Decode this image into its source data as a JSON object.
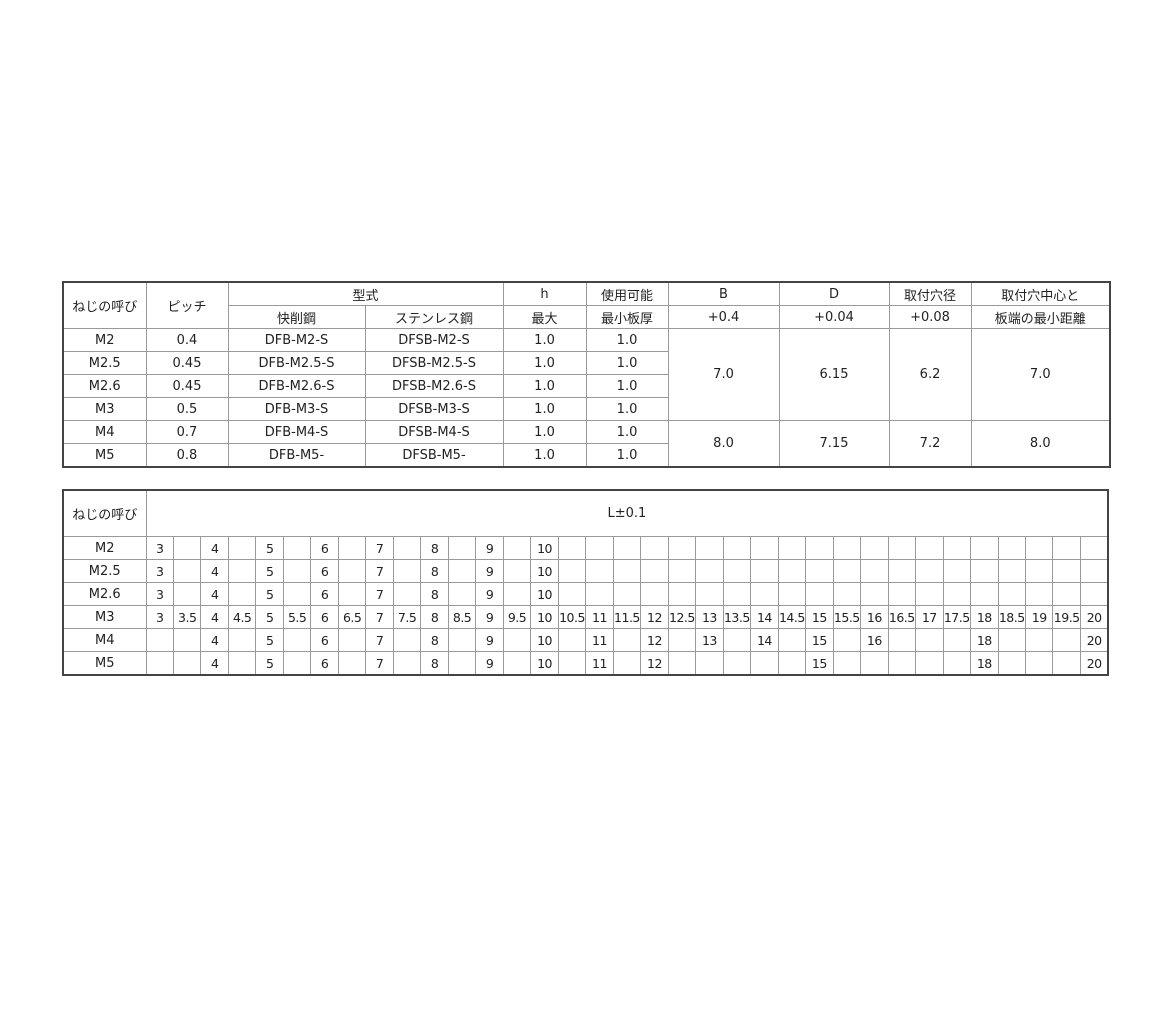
{
  "spec_table": {
    "headers": {
      "size": "ねじの呼び",
      "pitch": "ピッチ",
      "model": "型式",
      "model_free": "快削鋼",
      "model_sus": "ステンレス鋼",
      "h": "h",
      "h_sub": "最大",
      "thick": "使用可能",
      "thick_sub": "最小板厚",
      "b": "B",
      "b_tol": "+0.4",
      "d": "D",
      "d_tol": "+0.04",
      "hole": "取付穴径",
      "hole_tol": "+0.08",
      "edge": "取付穴中心と",
      "edge_sub": "板端の最小距離"
    },
    "rows": [
      {
        "size": "M2",
        "pitch": "0.4",
        "free": "DFB-M2-S",
        "sus": "DFSB-M2-S",
        "h": "1.0",
        "thick": "1.0"
      },
      {
        "size": "M2.5",
        "pitch": "0.45",
        "free": "DFB-M2.5-S",
        "sus": "DFSB-M2.5-S",
        "h": "1.0",
        "thick": "1.0"
      },
      {
        "size": "M2.6",
        "pitch": "0.45",
        "free": "DFB-M2.6-S",
        "sus": "DFSB-M2.6-S",
        "h": "1.0",
        "thick": "1.0"
      },
      {
        "size": "M3",
        "pitch": "0.5",
        "free": "DFB-M3-S",
        "sus": "DFSB-M3-S",
        "h": "1.0",
        "thick": "1.0"
      },
      {
        "size": "M4",
        "pitch": "0.7",
        "free": "DFB-M4-S",
        "sus": "DFSB-M4-S",
        "h": "1.0",
        "thick": "1.0"
      },
      {
        "size": "M5",
        "pitch": "0.8",
        "free": "DFB-M5-",
        "sus": "DFSB-M5-",
        "h": "1.0",
        "thick": "1.0"
      }
    ],
    "groups": [
      {
        "b": "7.0",
        "d": "6.15",
        "hole": "6.2",
        "edge": "7.0"
      },
      {
        "b": "8.0",
        "d": "7.15",
        "hole": "7.2",
        "edge": "8.0"
      }
    ]
  },
  "length_table": {
    "size_header": "ねじの呼び",
    "l_header": "L±0.1",
    "rows": [
      {
        "size": "M2",
        "cells": [
          "3",
          "",
          "4",
          "",
          "5",
          "",
          "6",
          "",
          "7",
          "",
          "8",
          "",
          "9",
          "",
          "10",
          "",
          "",
          "",
          "",
          "",
          "",
          "",
          "",
          "",
          "",
          "",
          "",
          "",
          "",
          "",
          "",
          "",
          "",
          "",
          ""
        ]
      },
      {
        "size": "M2.5",
        "cells": [
          "3",
          "",
          "4",
          "",
          "5",
          "",
          "6",
          "",
          "7",
          "",
          "8",
          "",
          "9",
          "",
          "10",
          "",
          "",
          "",
          "",
          "",
          "",
          "",
          "",
          "",
          "",
          "",
          "",
          "",
          "",
          "",
          "",
          "",
          "",
          "",
          ""
        ]
      },
      {
        "size": "M2.6",
        "cells": [
          "3",
          "",
          "4",
          "",
          "5",
          "",
          "6",
          "",
          "7",
          "",
          "8",
          "",
          "9",
          "",
          "10",
          "",
          "",
          "",
          "",
          "",
          "",
          "",
          "",
          "",
          "",
          "",
          "",
          "",
          "",
          "",
          "",
          "",
          "",
          "",
          ""
        ]
      },
      {
        "size": "M3",
        "cells": [
          "3",
          "3.5",
          "4",
          "4.5",
          "5",
          "5.5",
          "6",
          "6.5",
          "7",
          "7.5",
          "8",
          "8.5",
          "9",
          "9.5",
          "10",
          "10.5",
          "11",
          "11.5",
          "12",
          "12.5",
          "13",
          "13.5",
          "14",
          "14.5",
          "15",
          "15.5",
          "16",
          "16.5",
          "17",
          "17.5",
          "18",
          "18.5",
          "19",
          "19.5",
          "20"
        ]
      },
      {
        "size": "M4",
        "cells": [
          "",
          "",
          "4",
          "",
          "5",
          "",
          "6",
          "",
          "7",
          "",
          "8",
          "",
          "9",
          "",
          "10",
          "",
          "11",
          "",
          "12",
          "",
          "13",
          "",
          "14",
          "",
          "15",
          "",
          "16",
          "",
          "",
          "",
          "18",
          "",
          "",
          "",
          "20"
        ]
      },
      {
        "size": "M5",
        "cells": [
          "",
          "",
          "4",
          "",
          "5",
          "",
          "6",
          "",
          "7",
          "",
          "8",
          "",
          "9",
          "",
          "10",
          "",
          "11",
          "",
          "12",
          "",
          "",
          "",
          "",
          "",
          "15",
          "",
          "",
          "",
          "",
          "",
          "18",
          "",
          "",
          "",
          "20"
        ]
      }
    ]
  }
}
